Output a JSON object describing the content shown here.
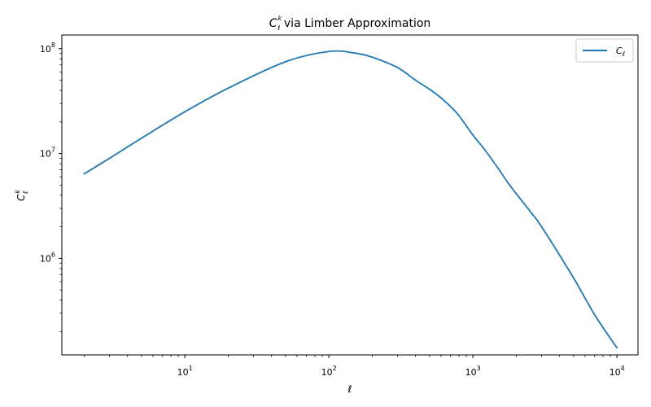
{
  "chart_data": {
    "type": "line",
    "title_main": "C",
    "title_sub": "ℓ",
    "title_sup": "k",
    "title_rest": " via Limber Approximation",
    "xlabel": "ℓ",
    "ylabel_main": "C",
    "ylabel_sub": "ℓ",
    "ylabel_sup": "k",
    "xscale": "log",
    "yscale": "log",
    "xlim": [
      1.4,
      14000
    ],
    "ylim": [
      120000,
      135000000
    ],
    "x_ticks": [
      {
        "value": 10,
        "base": "10",
        "exp": "1"
      },
      {
        "value": 100,
        "base": "10",
        "exp": "2"
      },
      {
        "value": 1000,
        "base": "10",
        "exp": "3"
      },
      {
        "value": 10000,
        "base": "10",
        "exp": "4"
      }
    ],
    "y_ticks": [
      {
        "value": 1000000,
        "base": "10",
        "exp": "6"
      },
      {
        "value": 10000000,
        "base": "10",
        "exp": "7"
      },
      {
        "value": 100000000,
        "base": "10",
        "exp": "8"
      }
    ],
    "legend_position": "top-right",
    "series": [
      {
        "name": "C",
        "name_sub": "ℓ",
        "color": "#1f77b4",
        "x": [
          2,
          3,
          5,
          10,
          20,
          50,
          100,
          150,
          200,
          300,
          400,
          500,
          600,
          700,
          800,
          1000,
          1200,
          1500,
          1800,
          2500,
          3000,
          5000,
          7000,
          10000
        ],
        "y": [
          6400000,
          9000000,
          14000000,
          25000000,
          42000000,
          75000000,
          94000000,
          91000000,
          83000000,
          66000000,
          50000000,
          41000000,
          34000000,
          28000000,
          23000000,
          15000000,
          11000000,
          7200000,
          5000000,
          2800000,
          2000000,
          650000,
          290000,
          140000
        ]
      }
    ]
  }
}
